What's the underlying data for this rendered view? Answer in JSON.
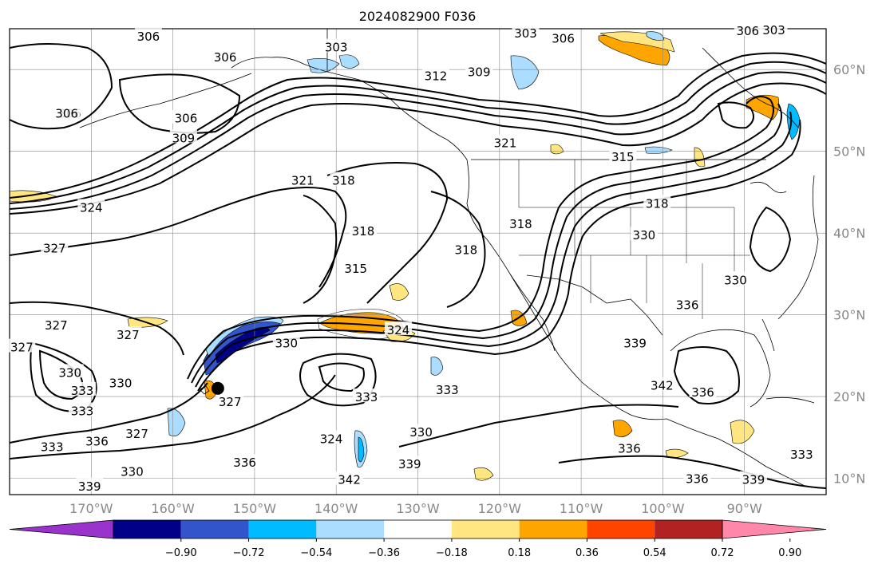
{
  "chart_data": {
    "type": "contour_map",
    "title": "2024082900 F036",
    "map": {
      "lon_range": [
        -180,
        -80
      ],
      "lat_range": [
        8,
        65
      ],
      "x_ticks": [
        {
          "lon": -170,
          "label": "170°W"
        },
        {
          "lon": -160,
          "label": "160°W"
        },
        {
          "lon": -150,
          "label": "150°W"
        },
        {
          "lon": -140,
          "label": "140°W"
        },
        {
          "lon": -130,
          "label": "130°W"
        },
        {
          "lon": -120,
          "label": "120°W"
        },
        {
          "lon": -110,
          "label": "110°W"
        },
        {
          "lon": -100,
          "label": "100°W"
        },
        {
          "lon": -90,
          "label": "90°W"
        }
      ],
      "y_ticks": [
        {
          "lat": 60,
          "label": "60°N"
        },
        {
          "lat": 50,
          "label": "50°N"
        },
        {
          "lat": 40,
          "label": "40°N"
        },
        {
          "lat": 30,
          "label": "30°N"
        },
        {
          "lat": 20,
          "label": "20°N"
        },
        {
          "lat": 10,
          "label": "10°N"
        }
      ],
      "grid": true,
      "tick_color": "#888888"
    },
    "colorbar": {
      "tick_labels": [
        "−0.90",
        "−0.72",
        "−0.54",
        "−0.36",
        "−0.18",
        "0.18",
        "0.36",
        "0.54",
        "0.72",
        "0.90"
      ],
      "colors": [
        "#9933cc",
        "#000088",
        "#3355cc",
        "#00bbff",
        "#aaddff",
        "#ffffff",
        "#ffe680",
        "#ffa500",
        "#ff4400",
        "#b22222",
        "#ff88aa"
      ],
      "extend": "both"
    },
    "contour_labels": [
      {
        "lon": -163,
        "lat": 64,
        "text": "306"
      },
      {
        "lon": -172.6,
        "lat": 54.6,
        "text": "306"
      },
      {
        "lon": -153.6,
        "lat": 61.5,
        "text": "306"
      },
      {
        "lon": -173,
        "lat": 54.6,
        "text": "306"
      },
      {
        "lon": -158.4,
        "lat": 54,
        "text": "306"
      },
      {
        "lon": -158.7,
        "lat": 51.6,
        "text": "309"
      },
      {
        "lon": -140,
        "lat": 62.7,
        "text": "303"
      },
      {
        "lon": -127.8,
        "lat": 59.2,
        "text": "312"
      },
      {
        "lon": -122.5,
        "lat": 59.7,
        "text": "309"
      },
      {
        "lon": -112.2,
        "lat": 63.8,
        "text": "306"
      },
      {
        "lon": -116.8,
        "lat": 64.4,
        "text": "303"
      },
      {
        "lon": -89.6,
        "lat": 64.7,
        "text": "306"
      },
      {
        "lon": -86.4,
        "lat": 64.8,
        "text": "303"
      },
      {
        "lon": -119.3,
        "lat": 51,
        "text": "321"
      },
      {
        "lon": -104.9,
        "lat": 49.3,
        "text": "315"
      },
      {
        "lon": -100.7,
        "lat": 43.6,
        "text": "318"
      },
      {
        "lon": -117.4,
        "lat": 41.1,
        "text": "318"
      },
      {
        "lon": -102.3,
        "lat": 39.7,
        "text": "330"
      },
      {
        "lon": -139.1,
        "lat": 46.4,
        "text": "318"
      },
      {
        "lon": -144.1,
        "lat": 46.4,
        "text": "321"
      },
      {
        "lon": -136.7,
        "lat": 40.2,
        "text": "318"
      },
      {
        "lon": -137.6,
        "lat": 35.6,
        "text": "315"
      },
      {
        "lon": -124.1,
        "lat": 37.9,
        "text": "318"
      },
      {
        "lon": -170,
        "lat": 43.1,
        "text": "324"
      },
      {
        "lon": -174.5,
        "lat": 38.1,
        "text": "327"
      },
      {
        "lon": -174.3,
        "lat": 28.7,
        "text": "327"
      },
      {
        "lon": -178.5,
        "lat": 26,
        "text": "327"
      },
      {
        "lon": -165.5,
        "lat": 27.5,
        "text": "327"
      },
      {
        "lon": -132.4,
        "lat": 28.1,
        "text": "324"
      },
      {
        "lon": -146.1,
        "lat": 26.5,
        "text": "330"
      },
      {
        "lon": -172.6,
        "lat": 22.9,
        "text": "330"
      },
      {
        "lon": -171.1,
        "lat": 20.7,
        "text": "333"
      },
      {
        "lon": -171.1,
        "lat": 18.2,
        "text": "333"
      },
      {
        "lon": -166.4,
        "lat": 21.6,
        "text": "330"
      },
      {
        "lon": -136.3,
        "lat": 19.9,
        "text": "333"
      },
      {
        "lon": -153,
        "lat": 19.3,
        "text": "327"
      },
      {
        "lon": -126.4,
        "lat": 20.8,
        "text": "333"
      },
      {
        "lon": -164.4,
        "lat": 15.4,
        "text": "327"
      },
      {
        "lon": -169.3,
        "lat": 14.5,
        "text": "336"
      },
      {
        "lon": -174.8,
        "lat": 13.8,
        "text": "333"
      },
      {
        "lon": -129.6,
        "lat": 15.6,
        "text": "330"
      },
      {
        "lon": -140.6,
        "lat": 14.8,
        "text": "324"
      },
      {
        "lon": -151.2,
        "lat": 11.9,
        "text": "336"
      },
      {
        "lon": -131,
        "lat": 11.7,
        "text": "339"
      },
      {
        "lon": -165,
        "lat": 10.8,
        "text": "330"
      },
      {
        "lon": -170.2,
        "lat": 9,
        "text": "339"
      },
      {
        "lon": -138.4,
        "lat": 9.8,
        "text": "342"
      },
      {
        "lon": -97,
        "lat": 31.2,
        "text": "336"
      },
      {
        "lon": -103.4,
        "lat": 26.5,
        "text": "339"
      },
      {
        "lon": -100.1,
        "lat": 21.3,
        "text": "342"
      },
      {
        "lon": -95.1,
        "lat": 20.5,
        "text": "336"
      },
      {
        "lon": -104.1,
        "lat": 13.6,
        "text": "336"
      },
      {
        "lon": -95.8,
        "lat": 9.9,
        "text": "336"
      },
      {
        "lon": -91.1,
        "lat": 34.2,
        "text": "330"
      },
      {
        "lon": -88.9,
        "lat": 9.8,
        "text": "339"
      },
      {
        "lon": -83,
        "lat": 12.9,
        "text": "333"
      }
    ],
    "marker": {
      "lon": -154.5,
      "lat": 21
    }
  }
}
